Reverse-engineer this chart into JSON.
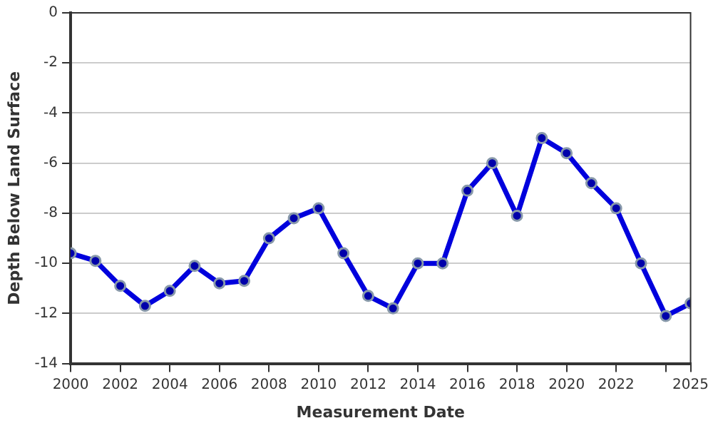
{
  "chart_data": {
    "type": "line",
    "xlabel": "Measurement Date",
    "ylabel": "Depth Below Land Surface",
    "x": [
      2000,
      2001,
      2002,
      2003,
      2004,
      2005,
      2006,
      2007,
      2008,
      2009,
      2010,
      2011,
      2012,
      2013,
      2014,
      2015,
      2016,
      2017,
      2018,
      2019,
      2020,
      2021,
      2022,
      2023,
      2024,
      2025
    ],
    "series": [
      {
        "color": "#0000dd",
        "values": [
          -9.6,
          -9.9,
          -10.9,
          -11.7,
          -11.1,
          -10.1,
          -10.8,
          -10.7,
          -9.0,
          -8.2,
          -7.8,
          -9.6,
          -11.3,
          -11.8,
          -10.0,
          -10.0,
          -7.1,
          -6.0,
          -8.1,
          -5.0,
          -5.6,
          -6.8,
          -7.8,
          -10.0,
          -12.1,
          -11.6
        ]
      }
    ],
    "xlim": [
      2000,
      2025
    ],
    "xticks": [
      2000,
      2002,
      2004,
      2006,
      2008,
      2010,
      2012,
      2014,
      2016,
      2018,
      2020,
      2022,
      {
        "value": 2024,
        "label": null
      },
      2025
    ],
    "ylim": [
      -14,
      0
    ],
    "yticks": [
      -14,
      -12,
      -10,
      -8,
      -6,
      -4,
      -2,
      0
    ],
    "grid": "y",
    "marker": "circle",
    "line_style": "solid",
    "legend": false
  }
}
